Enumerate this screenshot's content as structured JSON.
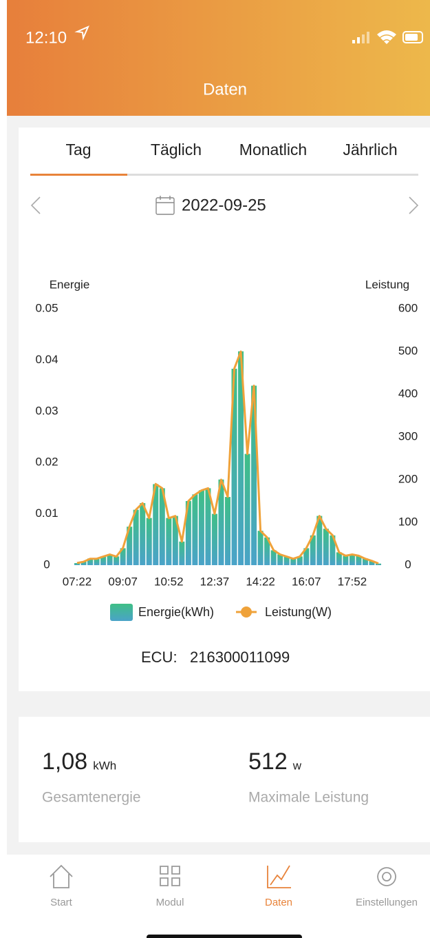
{
  "status": {
    "time": "12:10"
  },
  "header": {
    "title": "Daten"
  },
  "tabs": [
    "Tag",
    "Täglich",
    "Monatlich",
    "Jährlich"
  ],
  "active_tab": 0,
  "date": "2022-09-25",
  "chart_data": {
    "type": "combo",
    "y_label": "Energie",
    "y2_label": "Leistung",
    "categories": [
      "07:22",
      null,
      null,
      null,
      null,
      null,
      null,
      "09:07",
      null,
      null,
      null,
      null,
      null,
      null,
      "10:52",
      null,
      null,
      null,
      null,
      null,
      null,
      "12:37",
      null,
      null,
      null,
      null,
      null,
      null,
      "14:22",
      null,
      null,
      null,
      null,
      null,
      null,
      "16:07",
      null,
      null,
      null,
      null,
      null,
      null,
      "17:52",
      null,
      null,
      null,
      null
    ],
    "series": [
      {
        "name": "Energie(kWh)",
        "type": "bar",
        "color": "#3fbf86",
        "color2": "#4aa3c8",
        "values": [
          0.0004,
          0.0007,
          0.0013,
          0.0013,
          0.0017,
          0.0021,
          0.0017,
          0.0033,
          0.0075,
          0.0108,
          0.0121,
          0.0092,
          0.0158,
          0.015,
          0.0092,
          0.0096,
          0.0046,
          0.0125,
          0.0138,
          0.0146,
          0.015,
          0.01,
          0.0167,
          0.0133,
          0.0383,
          0.0417,
          0.0217,
          0.035,
          0.0067,
          0.0054,
          0.0029,
          0.0021,
          0.0017,
          0.0013,
          0.0017,
          0.0033,
          0.0058,
          0.0096,
          0.0071,
          0.0058,
          0.0025,
          0.0018,
          0.0021,
          0.0018,
          0.0013,
          0.0008,
          0.0003
        ]
      },
      {
        "name": "Leistung(W)",
        "type": "line",
        "axis": "y2",
        "color": "#efa23a",
        "values": [
          5,
          8,
          15,
          15,
          20,
          25,
          20,
          40,
          90,
          130,
          145,
          110,
          190,
          180,
          110,
          115,
          55,
          150,
          165,
          175,
          180,
          120,
          200,
          160,
          460,
          500,
          260,
          420,
          80,
          65,
          35,
          25,
          20,
          15,
          20,
          40,
          70,
          115,
          85,
          70,
          30,
          22,
          25,
          22,
          15,
          10,
          4
        ]
      }
    ],
    "ylim": [
      0,
      0.05
    ],
    "yticks": [
      0,
      0.01,
      0.02,
      0.03,
      0.04,
      0.05
    ],
    "y2lim": [
      0,
      600
    ],
    "y2ticks": [
      0,
      100,
      200,
      300,
      400,
      500,
      600
    ],
    "grid": false
  },
  "ecu": {
    "label": "ECU:",
    "value": "216300011099"
  },
  "summary": [
    {
      "value": "1,08",
      "unit": "kWh",
      "label": "Gesamtenergie"
    },
    {
      "value": "512",
      "unit": "w",
      "label": "Maximale Leistung"
    }
  ],
  "nav": [
    "Start",
    "Modul",
    "Daten",
    "Einstellungen"
  ],
  "active_nav": 2
}
